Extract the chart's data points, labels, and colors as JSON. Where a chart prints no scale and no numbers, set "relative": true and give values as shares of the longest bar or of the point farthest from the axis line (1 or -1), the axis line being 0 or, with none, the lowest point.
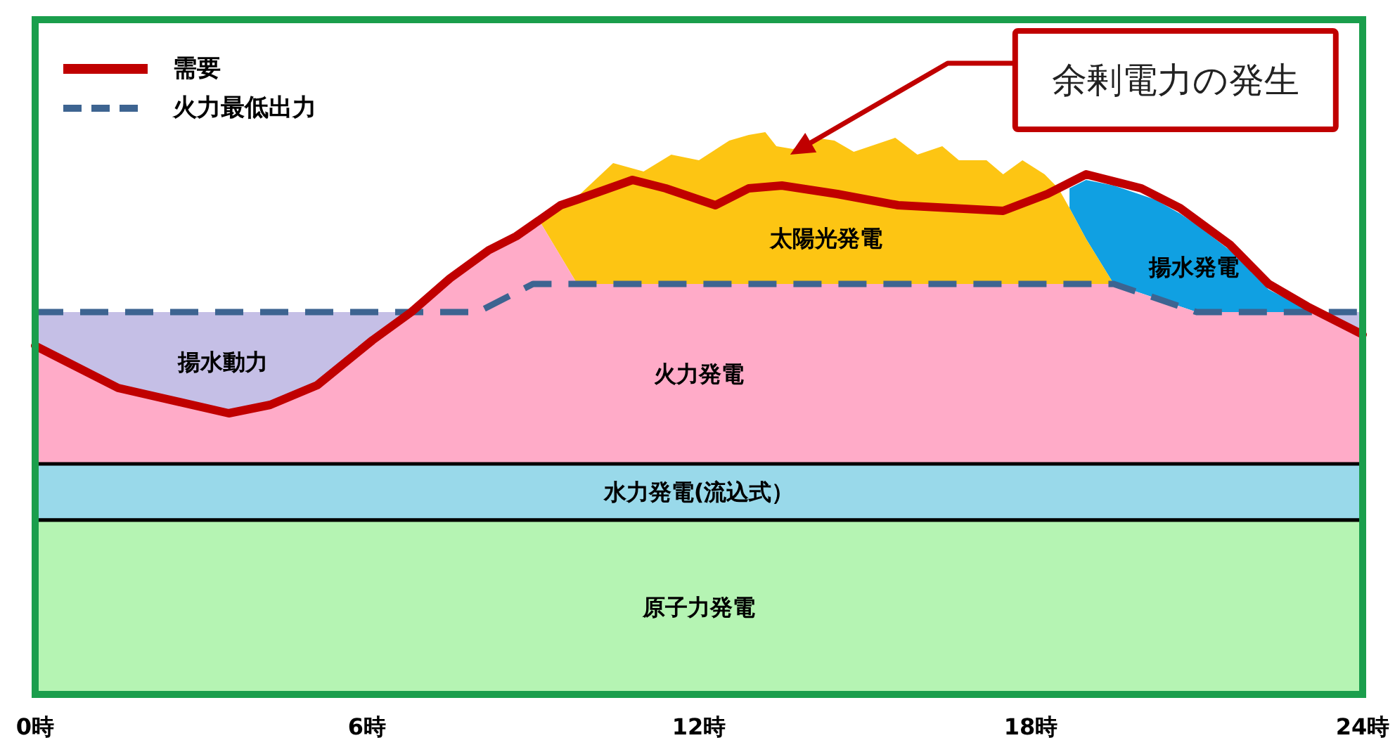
{
  "chart_data": {
    "type": "area",
    "relative": true,
    "legend": "top left",
    "x": [
      0,
      1.5,
      3.5,
      4.25,
      5.1,
      6.1,
      6.8,
      7.5,
      8.0,
      8.2,
      8.7,
      9.0,
      9.1,
      9.8,
      10.45,
      11.0,
      11.5,
      12.0,
      12.55,
      12.9,
      13.2,
      13.4,
      13.7,
      14.1,
      14.45,
      14.8,
      15.55,
      15.95,
      16.4,
      16.7,
      17.2,
      17.5,
      17.85,
      18.25,
      18.5,
      18.7,
      19.0,
      19.5,
      20.25,
      20.7,
      21.0,
      21.6,
      22.3,
      23.0,
      23.2,
      24
    ],
    "xlim": [
      0,
      24
    ],
    "xticks": [
      {
        "value": 0,
        "label": "0時"
      },
      {
        "value": 6,
        "label": "6時"
      },
      {
        "value": 12,
        "label": "12時"
      },
      {
        "value": 18,
        "label": "18時"
      },
      {
        "value": 24,
        "label": "24時"
      }
    ],
    "annotations": [
      {
        "text": "余剰電力の発生",
        "x": 13.65,
        "y": 0.96
      }
    ],
    "series": [
      {
        "name": "揚水発電",
        "color": "#10a0e2",
        "values": [
          null,
          null,
          null,
          null,
          null,
          null,
          null,
          null,
          null,
          null,
          null,
          null,
          null,
          null,
          null,
          null,
          null,
          null,
          null,
          null,
          null,
          null,
          null,
          null,
          null,
          null,
          null,
          null,
          null,
          null,
          null,
          null,
          null,
          null,
          null,
          0.9,
          0.915,
          0.905,
          0.88,
          0.855,
          0.835,
          0.79,
          0.72,
          0.685,
          0.68,
          null
        ]
      },
      {
        "name": "太陽光発電",
        "color": "#fdc513",
        "values": [
          null,
          null,
          null,
          null,
          null,
          null,
          null,
          null,
          null,
          null,
          null,
          null,
          0.845,
          0.885,
          0.945,
          0.93,
          0.96,
          0.95,
          0.985,
          0.995,
          1.0,
          0.975,
          0.97,
          0.99,
          0.985,
          0.965,
          0.99,
          0.96,
          0.975,
          0.95,
          0.95,
          0.925,
          0.95,
          0.925,
          0.9,
          0.865,
          0.81,
          0.73,
          null,
          null,
          null,
          null,
          null,
          null,
          null,
          null
        ]
      },
      {
        "name": "揚水動力",
        "color": "#c5bfe6",
        "values": [
          0.68,
          0.68,
          0.68,
          0.68,
          0.68,
          0.68,
          0.68,
          null,
          null,
          null,
          null,
          null,
          null,
          null,
          null,
          null,
          null,
          null,
          null,
          null,
          null,
          null,
          null,
          null,
          null,
          null,
          null,
          null,
          null,
          null,
          null,
          null,
          null,
          null,
          null,
          null,
          null,
          null,
          null,
          null,
          null,
          null,
          null,
          null,
          0.68,
          0.68
        ]
      },
      {
        "name": "火力発電",
        "color": "#ffabc8",
        "values": [
          0.62,
          0.545,
          0.5,
          0.515,
          0.55,
          0.63,
          0.68,
          0.74,
          0.775,
          0.79,
          0.815,
          0.835,
          0.845,
          0.73,
          0.73,
          0.73,
          0.73,
          0.73,
          0.73,
          0.73,
          0.73,
          0.73,
          0.73,
          0.73,
          0.73,
          0.73,
          0.73,
          0.73,
          0.73,
          0.73,
          0.73,
          0.73,
          0.73,
          0.73,
          0.73,
          0.73,
          0.73,
          0.73,
          0.705,
          0.69,
          0.68,
          0.68,
          0.68,
          0.68,
          0.68,
          0.64
        ]
      },
      {
        "name": "水力発電(流込式）",
        "color": "#99d9ea",
        "values": [
          0.41,
          0.41,
          0.41,
          0.41,
          0.41,
          0.41,
          0.41,
          0.41,
          0.41,
          0.41,
          0.41,
          0.41,
          0.41,
          0.41,
          0.41,
          0.41,
          0.41,
          0.41,
          0.41,
          0.41,
          0.41,
          0.41,
          0.41,
          0.41,
          0.41,
          0.41,
          0.41,
          0.41,
          0.41,
          0.41,
          0.41,
          0.41,
          0.41,
          0.41,
          0.41,
          0.41,
          0.41,
          0.41,
          0.41,
          0.41,
          0.41,
          0.41,
          0.41,
          0.41,
          0.41,
          0.41
        ]
      },
      {
        "name": "原子力発電",
        "color": "#b5f4b3",
        "values": [
          0.31,
          0.31,
          0.31,
          0.31,
          0.31,
          0.31,
          0.31,
          0.31,
          0.31,
          0.31,
          0.31,
          0.31,
          0.31,
          0.31,
          0.31,
          0.31,
          0.31,
          0.31,
          0.31,
          0.31,
          0.31,
          0.31,
          0.31,
          0.31,
          0.31,
          0.31,
          0.31,
          0.31,
          0.31,
          0.31,
          0.31,
          0.31,
          0.31,
          0.31,
          0.31,
          0.31,
          0.31,
          0.31,
          0.31,
          0.31,
          0.31,
          0.31,
          0.31,
          0.31,
          0.31,
          0.31
        ]
      },
      {
        "name": "需要",
        "type": "line",
        "color": "#c00000",
        "line_style": "solid",
        "x": [
          0,
          1.5,
          3.5,
          4.25,
          5.1,
          6.1,
          6.8,
          7.5,
          8.2,
          8.7,
          9.5,
          9.8,
          10.8,
          11.4,
          12.3,
          12.9,
          13.5,
          14.5,
          15.6,
          17.5,
          18.3,
          19,
          20,
          20.7,
          21.6,
          22.3,
          23,
          24
        ],
        "values": [
          0.62,
          0.545,
          0.5,
          0.515,
          0.55,
          0.63,
          0.68,
          0.74,
          0.79,
          0.815,
          0.87,
          0.88,
          0.915,
          0.9,
          0.87,
          0.9,
          0.905,
          0.89,
          0.87,
          0.86,
          0.89,
          0.925,
          0.9,
          0.865,
          0.8,
          0.73,
          0.69,
          0.64
        ]
      },
      {
        "name": "火力最低出力",
        "type": "line",
        "color": "#3d6491",
        "line_style": "dashed",
        "x": [
          0,
          8,
          9,
          19.5,
          21,
          24
        ],
        "values": [
          0.68,
          0.68,
          0.73,
          0.73,
          0.68,
          0.68
        ]
      }
    ]
  }
}
